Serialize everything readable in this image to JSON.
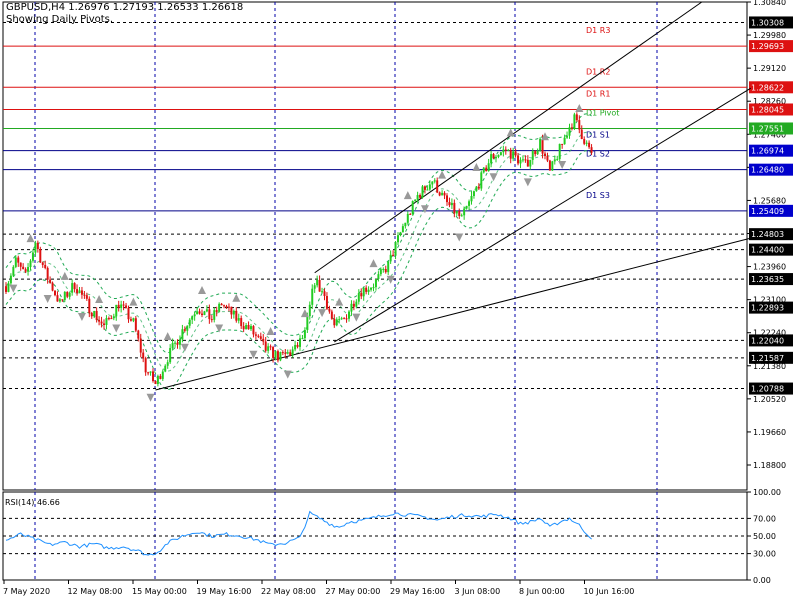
{
  "header": {
    "symbol_line": "GBPUSD,H4  1.26976 1.27193 1.26533 1.26618",
    "subtitle": "Showing Daily Pivots."
  },
  "colors": {
    "bull": "#22cc22",
    "bear": "#dd1111",
    "grid": "#0000aa",
    "resistance": "#dd1111",
    "pivot": "#22aa22",
    "support": "#000088",
    "rsi_line": "#1e90ff",
    "bollinger": "#22aa55",
    "arrows": "#999999"
  },
  "chart_data": [
    {
      "type": "candlestick",
      "symbol": "GBPUSD",
      "timeframe": "H4",
      "ylim": [
        1.1815,
        1.3084
      ],
      "y_ticks": [
        "1.30840",
        "1.29980",
        "1.29120",
        "1.28260",
        "1.27400",
        "1.26540",
        "1.25680",
        "1.24820",
        "1.23960",
        "1.23100",
        "1.22240",
        "1.21380",
        "1.20520",
        "1.19660",
        "1.18800"
      ],
      "x_ticks": [
        "7 May 2020",
        "12 May 08:00",
        "15 May 00:00",
        "19 May 16:00",
        "22 May 08:00",
        "27 May 00:00",
        "29 May 16:00",
        "3 Jun 08:00",
        "8 Jun 00:00",
        "10 Jun 16:00"
      ],
      "close_path": [
        [
          0,
          1.2345
        ],
        [
          4,
          1.241
        ],
        [
          8,
          1.237
        ],
        [
          12,
          1.246
        ],
        [
          16,
          1.238
        ],
        [
          22,
          1.23
        ],
        [
          28,
          1.235
        ],
        [
          34,
          1.229
        ],
        [
          40,
          1.224
        ],
        [
          46,
          1.23
        ],
        [
          52,
          1.225
        ],
        [
          57,
          1.213
        ],
        [
          61,
          1.209
        ],
        [
          66,
          1.216
        ],
        [
          72,
          1.223
        ],
        [
          78,
          1.229
        ],
        [
          84,
          1.226
        ],
        [
          88,
          1.23
        ],
        [
          94,
          1.226
        ],
        [
          100,
          1.223
        ],
        [
          106,
          1.218
        ],
        [
          112,
          1.216
        ],
        [
          118,
          1.218
        ],
        [
          122,
          1.222
        ],
        [
          126,
          1.236
        ],
        [
          130,
          1.232
        ],
        [
          134,
          1.224
        ],
        [
          138,
          1.226
        ],
        [
          144,
          1.233
        ],
        [
          150,
          1.235
        ],
        [
          156,
          1.24
        ],
        [
          162,
          1.25
        ],
        [
          168,
          1.258
        ],
        [
          174,
          1.262
        ],
        [
          180,
          1.256
        ],
        [
          186,
          1.252
        ],
        [
          192,
          1.26
        ],
        [
          198,
          1.268
        ],
        [
          204,
          1.27
        ],
        [
          208,
          1.268
        ],
        [
          212,
          1.266
        ],
        [
          218,
          1.272
        ],
        [
          222,
          1.264
        ],
        [
          226,
          1.27
        ],
        [
          230,
          1.276
        ],
        [
          232,
          1.278
        ],
        [
          235,
          1.274
        ],
        [
          238,
          1.27
        ],
        [
          240,
          1.2662
        ]
      ],
      "pivot_levels": [
        {
          "label": "D1 R3",
          "value": 1.29693,
          "kind": "resistance"
        },
        {
          "label": "D1 R2",
          "value": 1.28622,
          "kind": "resistance"
        },
        {
          "label": "D1 R1",
          "value": 1.28045,
          "kind": "resistance"
        },
        {
          "label": "D1 Pivot",
          "value": 1.27551,
          "kind": "pivot"
        },
        {
          "label": "D1 S1",
          "value": 1.26974,
          "kind": "support"
        },
        {
          "label": "D1 S2",
          "value": 1.2648,
          "kind": "support"
        },
        {
          "label": "D1 S3",
          "value": 1.25409,
          "kind": "support"
        }
      ],
      "highlight_label": "1.30308",
      "dashed_levels": [
        "1.24803",
        "1.24400",
        "1.23635",
        "1.22893",
        "1.22040",
        "1.21587",
        "1.20788"
      ]
    },
    {
      "type": "line",
      "name": "RSI(14)",
      "title": "RSI(14) 46.66",
      "ylim": [
        0,
        100
      ],
      "y_ticks": [
        "100.00",
        "70.00",
        "50.00",
        "30.00",
        "0.00"
      ],
      "values": [
        [
          0,
          45
        ],
        [
          6,
          52
        ],
        [
          12,
          46
        ],
        [
          18,
          40
        ],
        [
          24,
          43
        ],
        [
          30,
          38
        ],
        [
          36,
          41
        ],
        [
          42,
          36
        ],
        [
          48,
          38
        ],
        [
          54,
          33
        ],
        [
          58,
          28
        ],
        [
          62,
          32
        ],
        [
          66,
          42
        ],
        [
          72,
          50
        ],
        [
          78,
          55
        ],
        [
          84,
          50
        ],
        [
          90,
          52
        ],
        [
          96,
          50
        ],
        [
          102,
          46
        ],
        [
          108,
          40
        ],
        [
          114,
          42
        ],
        [
          120,
          48
        ],
        [
          124,
          76
        ],
        [
          128,
          70
        ],
        [
          132,
          64
        ],
        [
          136,
          60
        ],
        [
          140,
          66
        ],
        [
          146,
          68
        ],
        [
          152,
          72
        ],
        [
          158,
          76
        ],
        [
          164,
          74
        ],
        [
          170,
          72
        ],
        [
          176,
          68
        ],
        [
          182,
          72
        ],
        [
          188,
          74
        ],
        [
          194,
          72
        ],
        [
          200,
          75
        ],
        [
          206,
          70
        ],
        [
          210,
          64
        ],
        [
          214,
          66
        ],
        [
          218,
          70
        ],
        [
          222,
          60
        ],
        [
          226,
          66
        ],
        [
          230,
          70
        ],
        [
          234,
          62
        ],
        [
          238,
          50
        ],
        [
          240,
          46.66
        ]
      ]
    }
  ]
}
